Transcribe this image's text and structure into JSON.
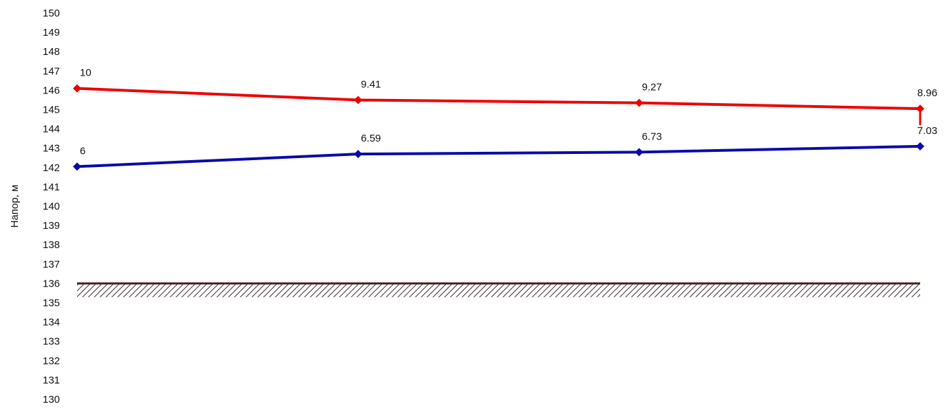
{
  "chart_data": {
    "type": "line",
    "ylabel": "Напор, м",
    "ylim": [
      130,
      150
    ],
    "yticks": [
      150,
      149,
      148,
      147,
      146,
      145,
      144,
      143,
      142,
      141,
      140,
      139,
      138,
      137,
      136,
      135,
      134,
      133,
      132,
      131,
      130
    ],
    "x": [
      0,
      1,
      2,
      3
    ],
    "series": [
      {
        "color": "#ee0000",
        "values": [
          146.1,
          145.5,
          145.35,
          145.05
        ],
        "labels": [
          "10",
          "9.41",
          "9.27",
          "8.96"
        ]
      },
      {
        "color": "#0a0aa8",
        "values": [
          142.05,
          142.7,
          142.8,
          143.1
        ],
        "labels": [
          "6",
          "6.59",
          "6.73",
          "7.03"
        ]
      }
    ],
    "ground": {
      "value": 136,
      "color": "#4a2020"
    },
    "grid": false
  }
}
